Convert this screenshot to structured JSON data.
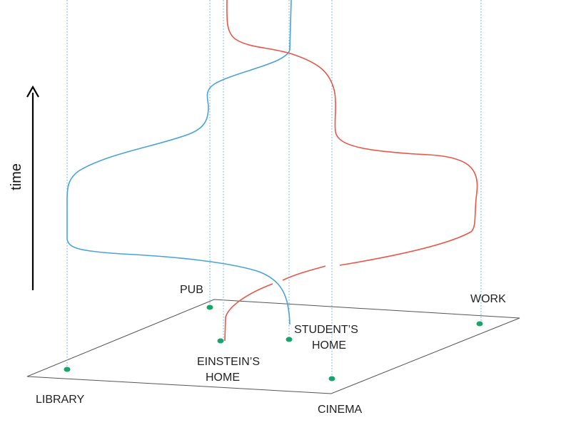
{
  "axis": {
    "label": "time"
  },
  "locations": {
    "library": "LIBRARY",
    "pub": "PUB",
    "einstein_line1": "EINSTEIN’S",
    "einstein_line2": "HOME",
    "student_line1": "STUDENT’S",
    "student_line2": "HOME",
    "cinema": "CINEMA",
    "work": "WORK"
  },
  "colors": {
    "student_worldline": "#4aa3d8",
    "einstein_worldline": "#e5584a",
    "location_dot": "#1aa36b"
  }
}
